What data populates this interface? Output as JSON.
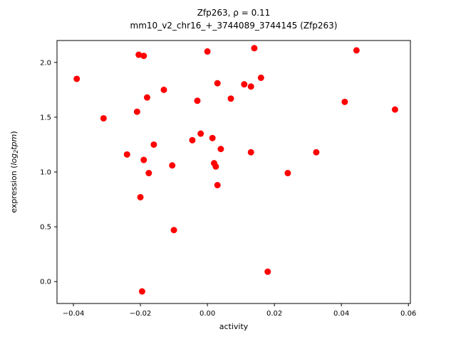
{
  "chart_data": {
    "type": "scatter",
    "title": "Zfp263, ρ = 0.11",
    "subtitle": "mm10_v2_chr16_+_3744089_3744145 (Zfp263)",
    "xlabel": "activity",
    "ylabel_parts": [
      {
        "text": "expression (",
        "italic": false,
        "sub": false
      },
      {
        "text": "log",
        "italic": true,
        "sub": false
      },
      {
        "text": "2",
        "italic": true,
        "sub": true
      },
      {
        "text": "tpm",
        "italic": true,
        "sub": false
      },
      {
        "text": ")",
        "italic": false,
        "sub": false
      }
    ],
    "marker_color": "#ff0000",
    "marker_radius": 4.5,
    "xlim": [
      -0.0449,
      0.0606
    ],
    "ylim": [
      -0.2,
      2.2
    ],
    "xticks": {
      "values": [
        -0.04,
        -0.02,
        0.0,
        0.02,
        0.04,
        0.06
      ],
      "labels": [
        "−0.04",
        "−0.02",
        "0.00",
        "0.02",
        "0.04",
        "0.06"
      ]
    },
    "yticks": {
      "values": [
        0.0,
        0.5,
        1.0,
        1.5,
        2.0
      ],
      "labels": [
        "0.0",
        "0.5",
        "1.0",
        "1.5",
        "2.0"
      ]
    },
    "points": [
      [
        -0.039,
        1.85
      ],
      [
        -0.031,
        1.49
      ],
      [
        -0.024,
        1.16
      ],
      [
        -0.021,
        1.55
      ],
      [
        -0.0205,
        2.07
      ],
      [
        -0.019,
        2.06
      ],
      [
        -0.02,
        0.77
      ],
      [
        -0.0195,
        -0.09
      ],
      [
        -0.019,
        1.11
      ],
      [
        -0.018,
        1.68
      ],
      [
        -0.0175,
        0.99
      ],
      [
        -0.016,
        1.25
      ],
      [
        -0.013,
        1.75
      ],
      [
        -0.0105,
        1.06
      ],
      [
        -0.01,
        0.47
      ],
      [
        -0.0045,
        1.29
      ],
      [
        -0.003,
        1.65
      ],
      [
        -0.002,
        1.35
      ],
      [
        0.0,
        2.1
      ],
      [
        0.0015,
        1.31
      ],
      [
        0.002,
        1.08
      ],
      [
        0.0025,
        1.05
      ],
      [
        0.003,
        0.88
      ],
      [
        0.003,
        1.81
      ],
      [
        0.004,
        1.21
      ],
      [
        0.007,
        1.67
      ],
      [
        0.011,
        1.8
      ],
      [
        0.013,
        1.78
      ],
      [
        0.014,
        2.13
      ],
      [
        0.013,
        1.18
      ],
      [
        0.016,
        1.86
      ],
      [
        0.018,
        0.09
      ],
      [
        0.024,
        0.99
      ],
      [
        0.0325,
        1.18
      ],
      [
        0.041,
        1.64
      ],
      [
        0.0445,
        2.11
      ],
      [
        0.056,
        1.57
      ]
    ]
  }
}
